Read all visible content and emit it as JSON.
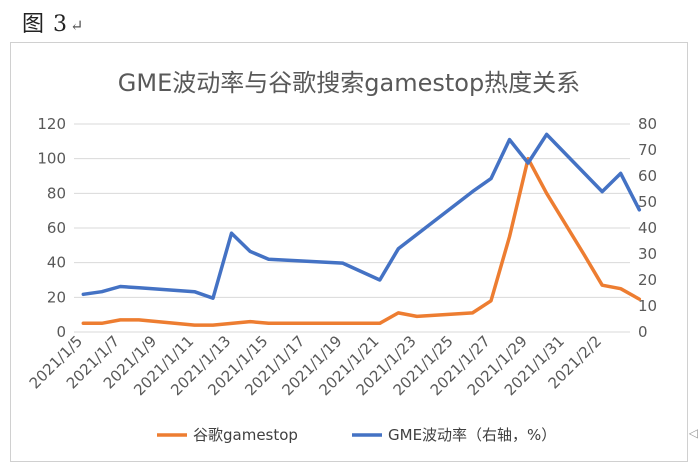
{
  "caption": {
    "text": "图 3",
    "mark": "↵"
  },
  "chart_data": {
    "type": "line",
    "title": "GME波动率与谷歌搜索gamestop热度关系",
    "x_tick_labels": [
      "2021/1/5",
      "2021/1/7",
      "2021/1/9",
      "2021/1/11",
      "2021/1/13",
      "2021/1/15",
      "2021/1/17",
      "2021/1/19",
      "2021/1/21",
      "2021/1/23",
      "2021/1/25",
      "2021/1/27",
      "2021/1/29",
      "2021/1/31",
      "2021/2/2"
    ],
    "x_start": "2021-01-05",
    "y_left": {
      "min": 0,
      "max": 120,
      "step": 20
    },
    "y_right": {
      "min": 0,
      "max": 80,
      "step": 10
    },
    "grid": "horizontal",
    "legend_position": "bottom",
    "series": [
      {
        "name": "谷歌gamestop",
        "axis": "left",
        "color": "#ED7D31",
        "points": [
          [
            "2021-01-05",
            5
          ],
          [
            "2021-01-06",
            5
          ],
          [
            "2021-01-07",
            7
          ],
          [
            "2021-01-08",
            7
          ],
          [
            "2021-01-11",
            4
          ],
          [
            "2021-01-12",
            4
          ],
          [
            "2021-01-14",
            6
          ],
          [
            "2021-01-15",
            5
          ],
          [
            "2021-01-20",
            5
          ],
          [
            "2021-01-21",
            5
          ],
          [
            "2021-01-22",
            11
          ],
          [
            "2021-01-23",
            9
          ],
          [
            "2021-01-26",
            11
          ],
          [
            "2021-01-27",
            18
          ],
          [
            "2021-01-28",
            55
          ],
          [
            "2021-01-29",
            100
          ],
          [
            "2021-01-30",
            80
          ],
          [
            "2021-02-01",
            45
          ],
          [
            "2021-02-02",
            27
          ],
          [
            "2021-02-03",
            25
          ],
          [
            "2021-02-04",
            19
          ]
        ]
      },
      {
        "name": "GME波动率（右轴，%）",
        "axis": "right",
        "color": "#4472C4",
        "points": [
          [
            "2021-01-05",
            14.5
          ],
          [
            "2021-01-06",
            15.5
          ],
          [
            "2021-01-07",
            17.5
          ],
          [
            "2021-01-08",
            17
          ],
          [
            "2021-01-11",
            15.5
          ],
          [
            "2021-01-12",
            13
          ],
          [
            "2021-01-13",
            38
          ],
          [
            "2021-01-14",
            31
          ],
          [
            "2021-01-15",
            28
          ],
          [
            "2021-01-19",
            26.5
          ],
          [
            "2021-01-21",
            20
          ],
          [
            "2021-01-22",
            32
          ],
          [
            "2021-01-26",
            54
          ],
          [
            "2021-01-27",
            59
          ],
          [
            "2021-01-28",
            74
          ],
          [
            "2021-01-29",
            65
          ],
          [
            "2021-01-30",
            76
          ],
          [
            "2021-02-02",
            54
          ],
          [
            "2021-02-03",
            61
          ],
          [
            "2021-02-04",
            47
          ]
        ]
      }
    ]
  }
}
